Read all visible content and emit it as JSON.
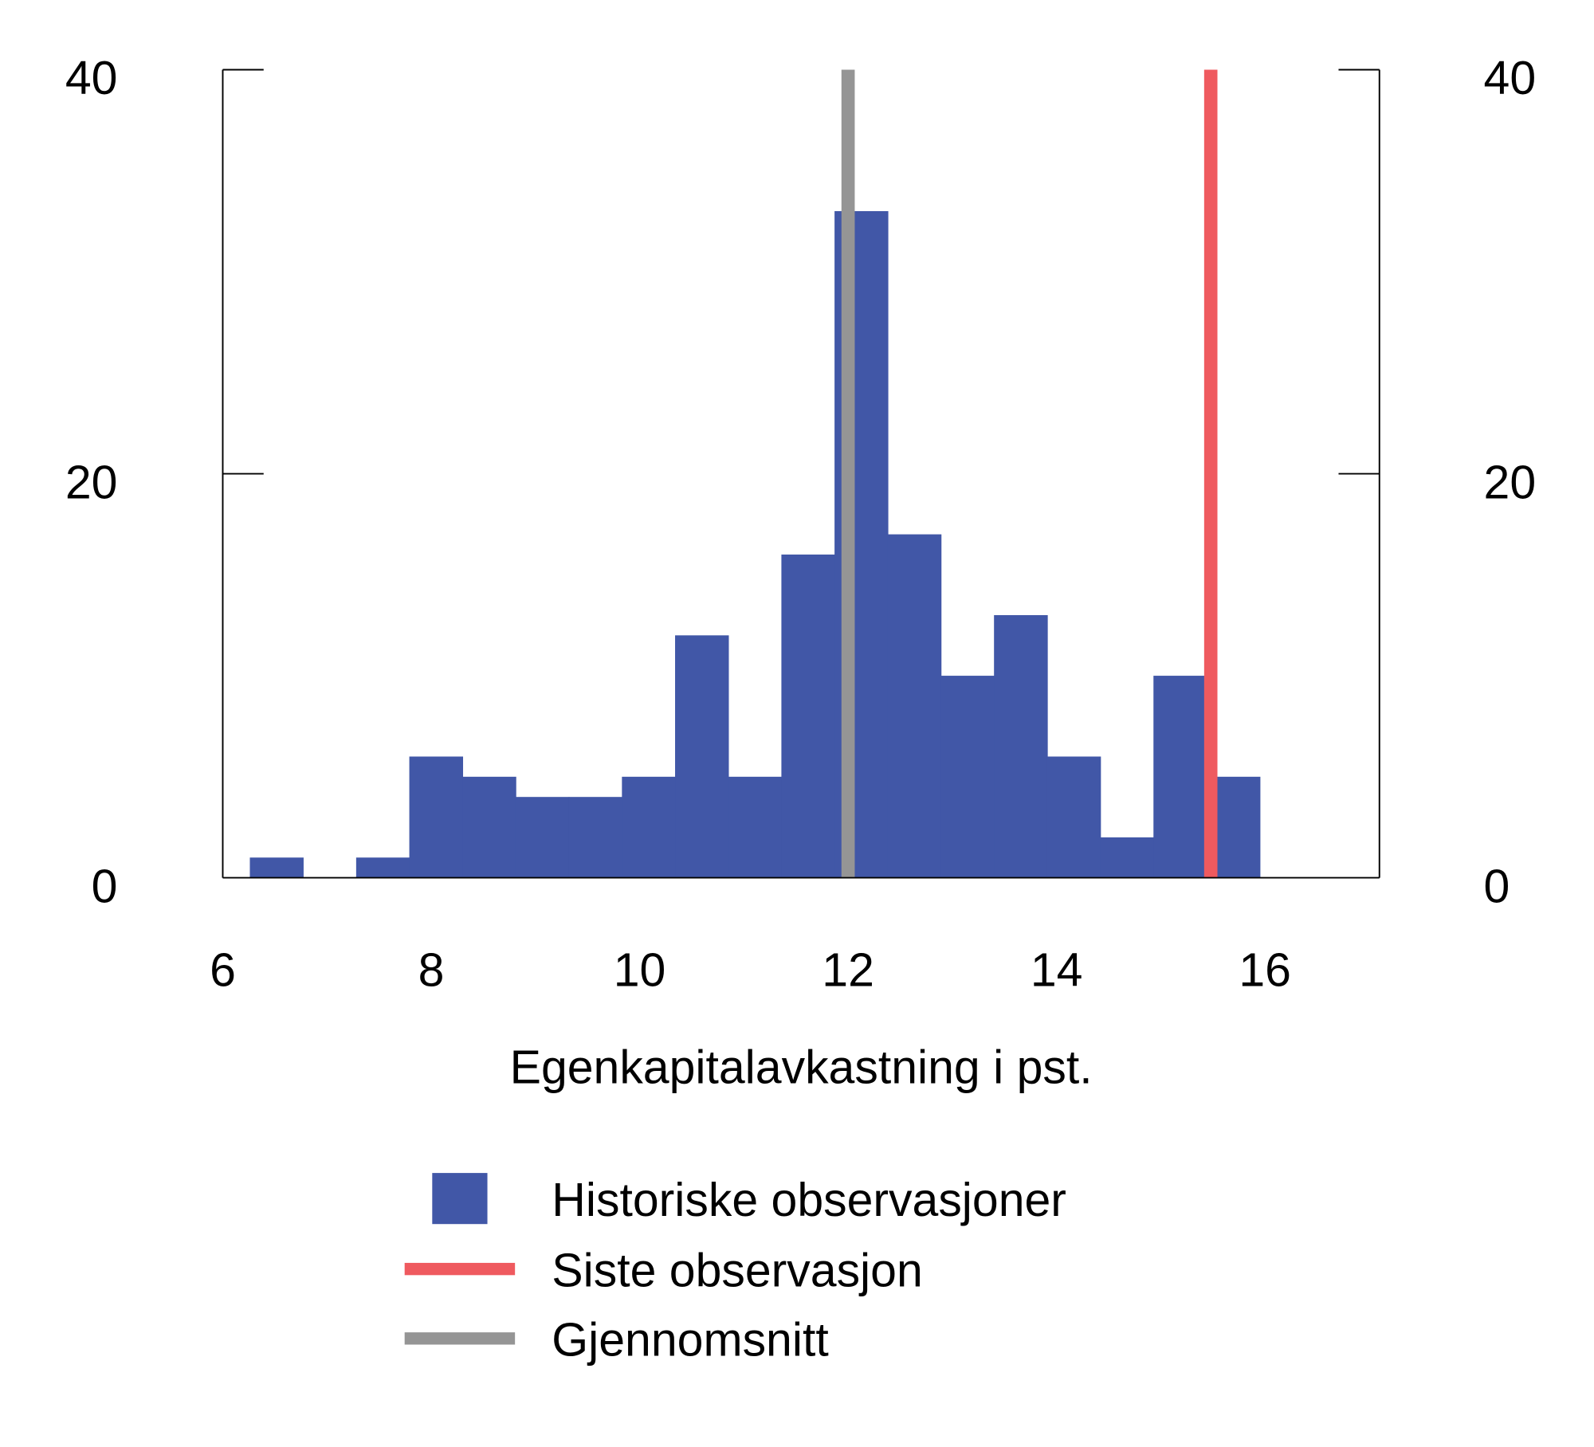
{
  "chart_data": {
    "type": "bar",
    "subtype": "histogram",
    "xlabel": "Egenkapitalavkastning i pst.",
    "ylabel": "",
    "xlim": [
      6,
      17.1
    ],
    "ylim": [
      0,
      40
    ],
    "x_ticks": [
      "6",
      "8",
      "10",
      "12",
      "14",
      "16"
    ],
    "x_tick_values": [
      6,
      8,
      10,
      12,
      14,
      16
    ],
    "y_ticks_left": [
      "0",
      "20",
      "40"
    ],
    "y_ticks_right": [
      "0",
      "20",
      "40"
    ],
    "y_tick_values": [
      0,
      20,
      40
    ],
    "grid": false,
    "bin_width": 0.51,
    "bins_start": [
      6.26,
      6.77,
      7.28,
      7.79,
      8.3,
      8.81,
      9.32,
      9.83,
      10.34,
      10.85,
      11.36,
      11.87,
      12.38,
      12.89,
      13.4,
      13.91,
      14.42,
      14.93,
      15.44
    ],
    "series": [
      {
        "name": "Historiske observasjoner",
        "color": "#4157a7",
        "values": [
          1,
          0,
          1,
          6,
          5,
          4,
          4,
          5,
          12,
          5,
          16,
          33,
          17,
          10,
          13,
          6,
          2,
          10,
          5
        ]
      }
    ],
    "vlines": [
      {
        "name": "Siste observasjon",
        "x": 15.48,
        "color": "#ef5a5f"
      },
      {
        "name": "Gjennomsnitt",
        "x": 12.0,
        "color": "#959595"
      }
    ],
    "legend": {
      "placement": "bottom",
      "items": [
        {
          "label": "Historiske observasjoner",
          "kind": "square",
          "color": "#4157a7"
        },
        {
          "label": "Siste observasjon",
          "kind": "line",
          "color": "#ef5a5f"
        },
        {
          "label": "Gjennomsnitt",
          "kind": "line",
          "color": "#959595"
        }
      ]
    }
  }
}
